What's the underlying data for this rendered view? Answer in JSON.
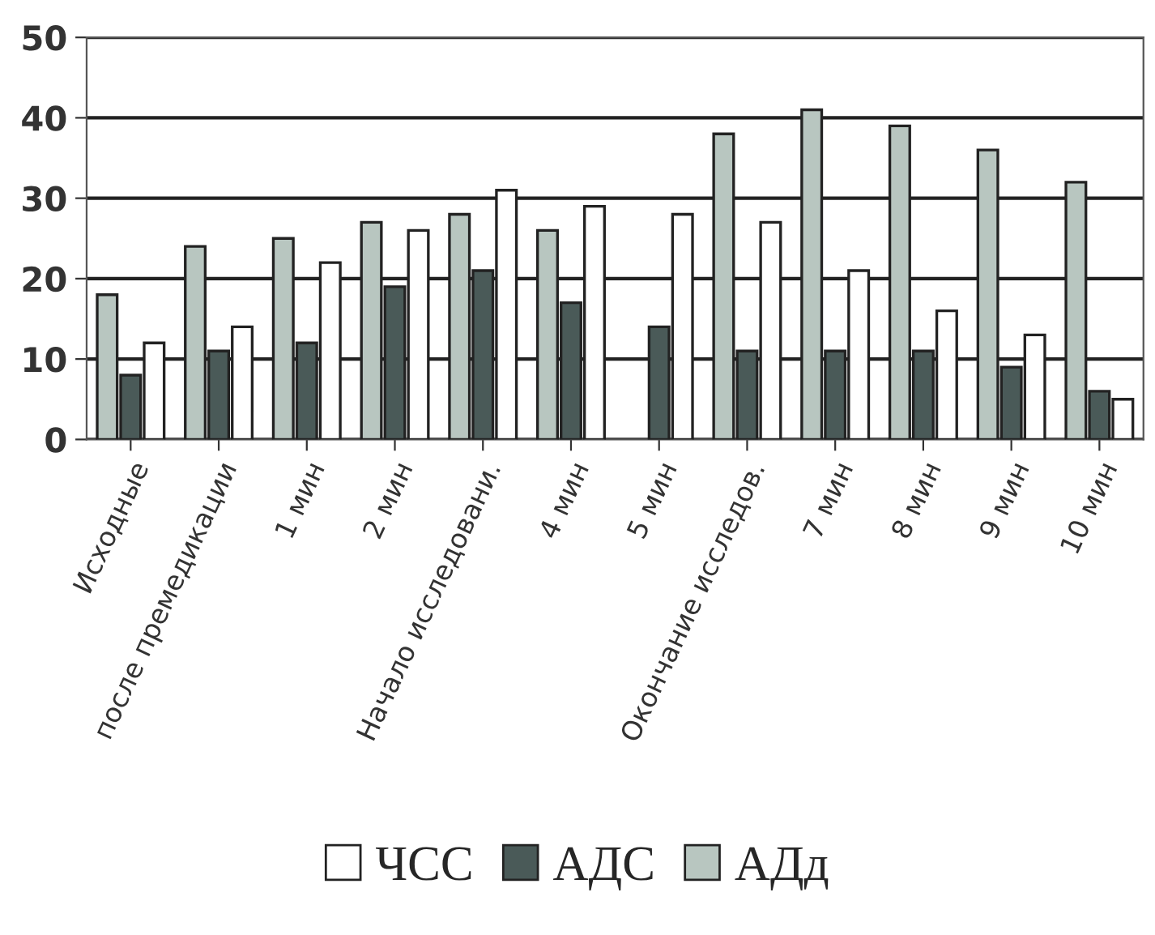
{
  "chart_data": {
    "type": "bar",
    "categories": [
      "Исходные",
      "после премедикации",
      "1 мин",
      "2 мин",
      "Начало исследовани.",
      "4 мин",
      "5 мин",
      "Окончание исследов.",
      "7 мин",
      "8 мин",
      "9 мин",
      "10 мин"
    ],
    "series": [
      {
        "name": "АДд",
        "color": "#b8c6c0",
        "values": [
          18,
          24,
          25,
          27,
          28,
          26,
          null,
          38,
          41,
          39,
          36,
          32
        ]
      },
      {
        "name": "АДС",
        "color": "#4a5a58",
        "values": [
          8,
          11,
          12,
          19,
          21,
          17,
          14,
          11,
          11,
          11,
          9,
          6
        ]
      },
      {
        "name": "ЧСС",
        "color": "#ffffff",
        "values": [
          12,
          14,
          22,
          26,
          31,
          29,
          28,
          27,
          21,
          16,
          13,
          5
        ]
      }
    ],
    "ylim": [
      0,
      50
    ],
    "yticks": [
      0,
      10,
      20,
      30,
      40,
      50
    ],
    "grid": "y",
    "legend": "bottom"
  }
}
